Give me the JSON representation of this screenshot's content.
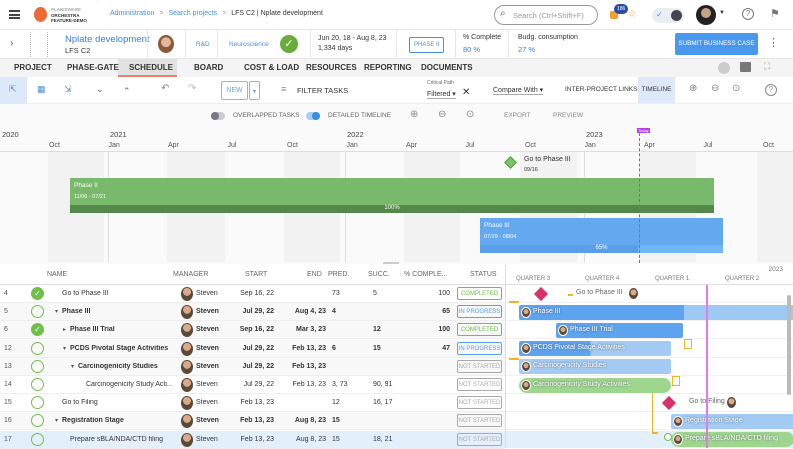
{
  "topbar": {
    "logo_line1": "PLANISWARE",
    "logo_line2": "ORCHESTRA",
    "logo_line3": "FEATURE-DEMO",
    "breadcrumb": [
      "Administration",
      "Search projects",
      "LFS C2 | Nplate development"
    ],
    "search_placeholder": "Search (Ctrl+Shift+F)",
    "notif_count": "186"
  },
  "project": {
    "name": "Nplate development",
    "code": "LFS C2",
    "dept": "R&D",
    "area": "Neuroscience",
    "dates": "Jun 20, 18 - Aug 8, 23",
    "days": "1,334 days",
    "phase": "PHASE II",
    "complete_label": "% Complete",
    "complete_value": "80 %",
    "budget_label": "Budg. consumption",
    "budget_value": "27 %",
    "submit": "SUBMIT BUSINESS CASE"
  },
  "tabs": [
    "PROJECT",
    "PHASE-GATE",
    "SCHEDULE",
    "BOARD",
    "COST & LOAD",
    "RESOURCES",
    "REPORTING",
    "DOCUMENTS"
  ],
  "toolbar": {
    "new": "NEW",
    "filter": "FILTER TASKS",
    "critical_label": "Critical Path",
    "critical_value": "Filtered",
    "compare": "Compare With",
    "inter": "INTER-PROJECT LINKS",
    "timeline": "TIMELINE"
  },
  "timeline": {
    "overlapped": "OVERLAPPED TASKS",
    "detailed": "DETAILED TIMELINE",
    "export": "EXPORT",
    "preview": "PREVIEW",
    "today": "Today",
    "years": [
      "2020",
      "2021",
      "2022",
      "2023"
    ],
    "months": [
      "Oct",
      "Jan",
      "Apr",
      "Jul",
      "Oct",
      "Jan",
      "Apr",
      "Jul",
      "Oct",
      "Jan",
      "Apr",
      "Jul",
      "Oct"
    ],
    "milestone": {
      "name": "Go to Phase III",
      "date": "09/16"
    },
    "bars": [
      {
        "name": "Phase II",
        "dates": "11/06 - 07/21",
        "progress": "100%",
        "pct": 100
      },
      {
        "name": "Phase III",
        "dates": "07/29 - 08/04",
        "progress": "65%",
        "pct": 65
      }
    ]
  },
  "grid": {
    "headers": [
      "NAME",
      "MANAGER",
      "START",
      "END",
      "PRED.",
      "SUCC.",
      "% COMPLE...",
      "STATUS"
    ],
    "rows": [
      {
        "id": "4",
        "done": true,
        "name": "Go to Phase III",
        "indent": 0,
        "bold": false,
        "caret": "",
        "manager": "Steven",
        "start": "Sep 16, 22",
        "end": "",
        "pred": "73",
        "succ": "5",
        "pct": "100",
        "status": "COMPLETED"
      },
      {
        "id": "5",
        "done": false,
        "name": "Phase III",
        "indent": 0,
        "bold": true,
        "caret": "▾",
        "manager": "Steven",
        "start": "Jul 29, 22",
        "end": "Aug 4, 23",
        "pred": "4",
        "succ": "",
        "pct": "65",
        "status": "IN PROGRESS"
      },
      {
        "id": "6",
        "done": true,
        "name": "Phase III Trial",
        "indent": 1,
        "bold": true,
        "caret": "▸",
        "manager": "Steven",
        "start": "Sep 16, 22",
        "end": "Mar 3, 23",
        "pred": "",
        "succ": "12",
        "pct": "100",
        "status": "COMPLETED"
      },
      {
        "id": "12",
        "done": false,
        "name": "PCDS Pivotal Stage Activities",
        "indent": 1,
        "bold": true,
        "caret": "▾",
        "manager": "Steven",
        "start": "Jul 29, 22",
        "end": "Feb 13, 23",
        "pred": "6",
        "succ": "15",
        "pct": "47",
        "status": "IN PROGRESS"
      },
      {
        "id": "13",
        "done": false,
        "name": "Carcinogenicity Studies",
        "indent": 2,
        "bold": true,
        "caret": "▾",
        "manager": "Steven",
        "start": "Jul 29, 22",
        "end": "Feb 13, 23",
        "pred": "",
        "succ": "",
        "pct": "",
        "status": "NOT STARTED"
      },
      {
        "id": "14",
        "done": false,
        "name": "Carcinogenicity Study Acti...",
        "indent": 3,
        "bold": false,
        "caret": "",
        "manager": "Steven",
        "start": "Jul 29, 22",
        "end": "Feb 13, 23",
        "pred": "3, 73",
        "succ": "90, 91",
        "pct": "",
        "status": "NOT STARTED"
      },
      {
        "id": "15",
        "done": false,
        "name": "Go to Filing",
        "indent": 0,
        "bold": false,
        "caret": "",
        "manager": "Steven",
        "start": "Feb 13, 23",
        "end": "",
        "pred": "12",
        "succ": "16, 17",
        "pct": "",
        "status": "NOT STARTED"
      },
      {
        "id": "16",
        "done": false,
        "name": "Registration Stage",
        "indent": 0,
        "bold": true,
        "caret": "▾",
        "manager": "Steven",
        "start": "Feb 13, 23",
        "end": "Aug 8, 23",
        "pred": "15",
        "succ": "",
        "pct": "",
        "status": "NOT STARTED"
      },
      {
        "id": "17",
        "done": false,
        "name": "Prepare sBLA/NDA/CTD filing",
        "indent": 1,
        "bold": false,
        "caret": "",
        "manager": "Steven",
        "start": "Feb 13, 23",
        "end": "Aug 8, 23",
        "pred": "15",
        "succ": "18, 21",
        "pct": "",
        "status": "NOT STARTED"
      }
    ]
  },
  "gantt": {
    "year": "2023",
    "quarters": [
      "QUARTER 3",
      "QUARTER 4",
      "QUARTER 1",
      "QUARTER 2"
    ],
    "items": [
      "Go to Phase III",
      "Phase III",
      "Phase III Trial",
      "PCDS Pivotal Stage Activities",
      "Carcinogenicity Studies",
      "Carcinogenicity Study Activities",
      "Go to Filing",
      "Registration Stage",
      "Prepare sBLA/NDA/CTD filing"
    ]
  }
}
